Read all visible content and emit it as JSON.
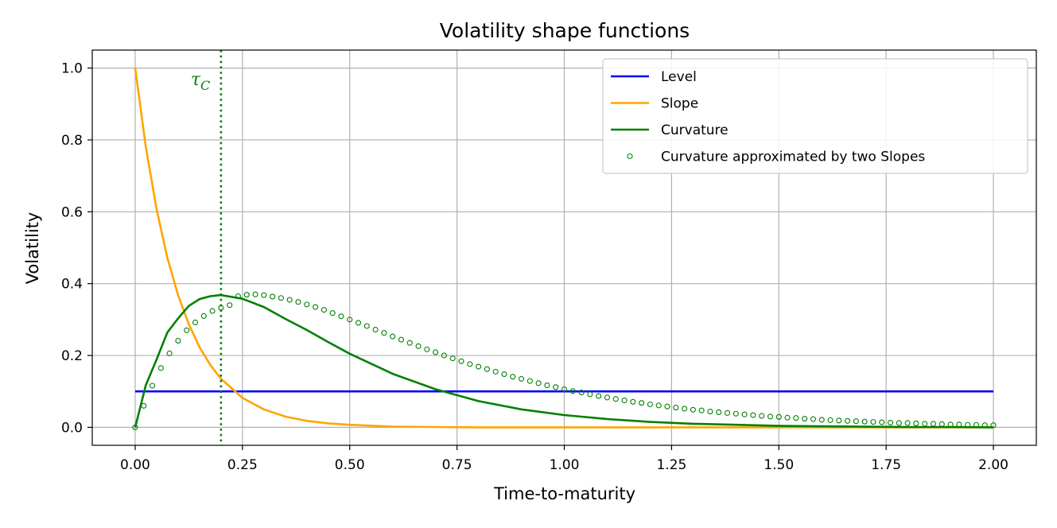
{
  "chart_data": {
    "type": "line",
    "title": "Volatility shape functions",
    "xlabel": "Time-to-maturity",
    "ylabel": "Volatility",
    "xlim": [
      -0.1,
      2.1
    ],
    "ylim": [
      -0.05,
      1.05
    ],
    "grid": true,
    "legend_position": "top-right",
    "xticks": [
      0.0,
      0.25,
      0.5,
      0.75,
      1.0,
      1.25,
      1.5,
      1.75,
      2.0
    ],
    "xtick_labels": [
      "0.00",
      "0.25",
      "0.50",
      "0.75",
      "1.00",
      "1.25",
      "1.50",
      "1.75",
      "2.00"
    ],
    "yticks": [
      0.0,
      0.2,
      0.4,
      0.6,
      0.8,
      1.0
    ],
    "ytick_labels": [
      "0.0",
      "0.2",
      "0.4",
      "0.6",
      "0.8",
      "1.0"
    ],
    "series": [
      {
        "name": "Level",
        "color": "#0000ff",
        "style": "line",
        "x": [
          0.0,
          2.0
        ],
        "values": [
          0.1,
          0.1
        ]
      },
      {
        "name": "Slope",
        "color": "#ffa500",
        "style": "line",
        "x": [
          0.0,
          0.025,
          0.05,
          0.075,
          0.1,
          0.125,
          0.15,
          0.175,
          0.2,
          0.25,
          0.3,
          0.35,
          0.4,
          0.45,
          0.5,
          0.6,
          0.7,
          0.8,
          0.9,
          1.0,
          1.25,
          1.5,
          1.75,
          2.0
        ],
        "values": [
          1.0,
          0.779,
          0.607,
          0.472,
          0.368,
          0.287,
          0.223,
          0.174,
          0.135,
          0.082,
          0.05,
          0.03,
          0.018,
          0.011,
          0.007,
          0.002,
          0.001,
          0.0,
          0.0,
          0.0,
          0.0,
          0.0,
          0.0,
          0.0
        ]
      },
      {
        "name": "Curvature",
        "color": "#008000",
        "style": "line",
        "x": [
          0.0,
          0.025,
          0.05,
          0.075,
          0.1,
          0.125,
          0.15,
          0.175,
          0.2,
          0.25,
          0.3,
          0.35,
          0.4,
          0.45,
          0.5,
          0.6,
          0.7,
          0.8,
          0.9,
          1.0,
          1.1,
          1.2,
          1.3,
          1.4,
          1.5,
          1.6,
          1.7,
          1.8,
          1.9,
          2.0
        ],
        "values": [
          0.0,
          0.118,
          0.189,
          0.264,
          0.303,
          0.338,
          0.357,
          0.365,
          0.368,
          0.358,
          0.335,
          0.302,
          0.271,
          0.237,
          0.205,
          0.149,
          0.106,
          0.073,
          0.05,
          0.034,
          0.023,
          0.015,
          0.01,
          0.007,
          0.004,
          0.003,
          0.002,
          0.001,
          0.001,
          0.0
        ]
      },
      {
        "name": "Curvature approximated by two Slopes",
        "color": "#008000",
        "style": "markers",
        "x": [
          0.0,
          0.02,
          0.04,
          0.06,
          0.08,
          0.1,
          0.12,
          0.14,
          0.16,
          0.18,
          0.2,
          0.22,
          0.24,
          0.26,
          0.28,
          0.3,
          0.32,
          0.34,
          0.36,
          0.38,
          0.4,
          0.42,
          0.44,
          0.46,
          0.48,
          0.5,
          0.52,
          0.54,
          0.56,
          0.58,
          0.6,
          0.62,
          0.64,
          0.66,
          0.68,
          0.7,
          0.72,
          0.74,
          0.76,
          0.78,
          0.8,
          0.82,
          0.84,
          0.86,
          0.88,
          0.9,
          0.92,
          0.94,
          0.96,
          0.98,
          1.0,
          1.02,
          1.04,
          1.06,
          1.08,
          1.1,
          1.12,
          1.14,
          1.16,
          1.18,
          1.2,
          1.22,
          1.24,
          1.26,
          1.28,
          1.3,
          1.32,
          1.34,
          1.36,
          1.38,
          1.4,
          1.42,
          1.44,
          1.46,
          1.48,
          1.5,
          1.52,
          1.54,
          1.56,
          1.58,
          1.6,
          1.62,
          1.64,
          1.66,
          1.68,
          1.7,
          1.72,
          1.74,
          1.76,
          1.78,
          1.8,
          1.82,
          1.84,
          1.86,
          1.88,
          1.9,
          1.92,
          1.94,
          1.96,
          1.98,
          2.0
        ],
        "values": [
          0.0,
          0.06,
          0.116,
          0.165,
          0.206,
          0.241,
          0.27,
          0.292,
          0.31,
          0.324,
          0.333,
          0.34,
          0.365,
          0.369,
          0.37,
          0.368,
          0.364,
          0.36,
          0.355,
          0.349,
          0.342,
          0.335,
          0.327,
          0.318,
          0.309,
          0.3,
          0.291,
          0.282,
          0.272,
          0.263,
          0.253,
          0.244,
          0.235,
          0.226,
          0.217,
          0.209,
          0.2,
          0.192,
          0.184,
          0.176,
          0.169,
          0.162,
          0.155,
          0.148,
          0.141,
          0.135,
          0.129,
          0.123,
          0.117,
          0.112,
          0.106,
          0.101,
          0.097,
          0.092,
          0.087,
          0.083,
          0.079,
          0.075,
          0.071,
          0.068,
          0.064,
          0.061,
          0.058,
          0.055,
          0.052,
          0.049,
          0.047,
          0.044,
          0.042,
          0.04,
          0.038,
          0.036,
          0.034,
          0.032,
          0.03,
          0.029,
          0.027,
          0.026,
          0.024,
          0.023,
          0.021,
          0.02,
          0.019,
          0.018,
          0.017,
          0.016,
          0.015,
          0.014,
          0.013,
          0.012,
          0.012,
          0.011,
          0.01,
          0.01,
          0.009,
          0.008,
          0.008,
          0.007,
          0.007,
          0.006,
          0.006
        ]
      }
    ],
    "annotations": [
      {
        "type": "vline",
        "x": 0.2,
        "color": "#008000",
        "linestyle": "dotted",
        "label": "τ",
        "label_subscript": "C"
      }
    ]
  }
}
